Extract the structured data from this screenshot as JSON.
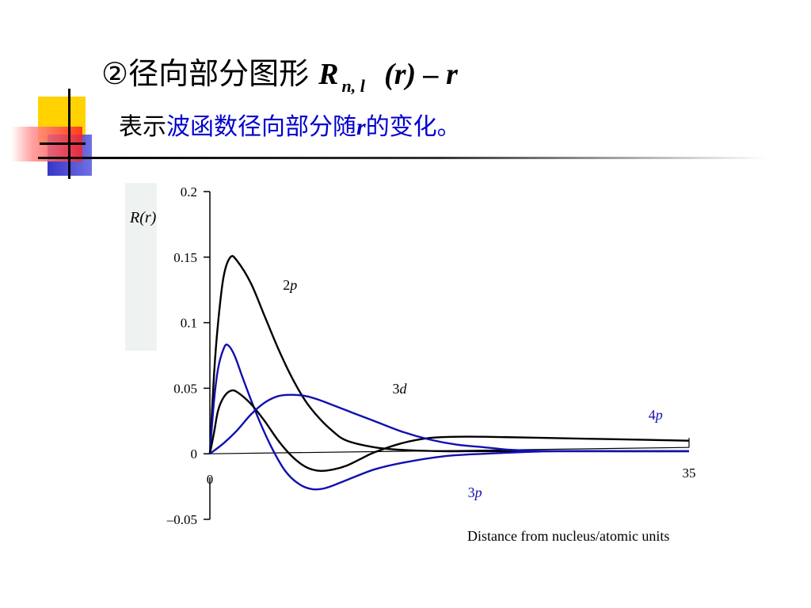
{
  "slide": {
    "title_prefix": "②径向部分图形",
    "title_R": "R",
    "title_sub": "n, l",
    "title_suffix": "(r) – r",
    "subtitle_black": "表示",
    "subtitle_blue1": "波函数径向部分随",
    "subtitle_r": "r",
    "subtitle_blue2": "的变化。"
  },
  "colors": {
    "black": "#000000",
    "blue": "#1010b0",
    "accent_yellow": "#ffd200",
    "accent_red": "#ff3030",
    "accent_blue": "#3030d0"
  },
  "chart_data": {
    "type": "line",
    "ylabel": "R(r)",
    "xlabel": "Distance from nucleus/atomic units",
    "xlim": [
      0,
      35
    ],
    "ylim": [
      -0.05,
      0.2
    ],
    "x_tick_labels": [
      "0",
      "35"
    ],
    "y_tick_labels": [
      "0.2",
      "0.15",
      "0.1",
      "0.05",
      "0",
      "–0.05"
    ],
    "y_tick_values": [
      0.2,
      0.15,
      0.1,
      0.05,
      0,
      -0.05
    ],
    "series": [
      {
        "name": "2p",
        "label_text": "2p",
        "color": "#000000",
        "points": [
          [
            0,
            0
          ],
          [
            0.3,
            0.06
          ],
          [
            0.6,
            0.1
          ],
          [
            1,
            0.135
          ],
          [
            1.5,
            0.15
          ],
          [
            2,
            0.147
          ],
          [
            3,
            0.13
          ],
          [
            4,
            0.105
          ],
          [
            5,
            0.08
          ],
          [
            6,
            0.058
          ],
          [
            7,
            0.04
          ],
          [
            8,
            0.027
          ],
          [
            9,
            0.017
          ],
          [
            10,
            0.01
          ],
          [
            12,
            0.005
          ],
          [
            14,
            0.003
          ],
          [
            17,
            0.002
          ],
          [
            20,
            0.002
          ],
          [
            25,
            0.002
          ],
          [
            30,
            0.002
          ],
          [
            35,
            0.002
          ]
        ]
      },
      {
        "name": "3p",
        "label_text": "3p",
        "color": "#1010b0",
        "points": [
          [
            0,
            0
          ],
          [
            0.3,
            0.04
          ],
          [
            0.6,
            0.065
          ],
          [
            1,
            0.08
          ],
          [
            1.3,
            0.083
          ],
          [
            1.8,
            0.075
          ],
          [
            2.5,
            0.055
          ],
          [
            3.5,
            0.028
          ],
          [
            4.5,
            0.005
          ],
          [
            5.5,
            -0.013
          ],
          [
            6.5,
            -0.023
          ],
          [
            7.5,
            -0.027
          ],
          [
            8.5,
            -0.026
          ],
          [
            10,
            -0.02
          ],
          [
            12,
            -0.012
          ],
          [
            14,
            -0.007
          ],
          [
            17,
            -0.002
          ],
          [
            20,
            0.0
          ],
          [
            25,
            0.002
          ],
          [
            30,
            0.002
          ],
          [
            35,
            0.002
          ]
        ]
      },
      {
        "name": "3d",
        "label_text": "3d",
        "color": "#000000",
        "points": [
          [
            0,
            0
          ],
          [
            0.3,
            0.016
          ],
          [
            0.6,
            0.033
          ],
          [
            1,
            0.043
          ],
          [
            1.5,
            0.048
          ],
          [
            2,
            0.047
          ],
          [
            3,
            0.038
          ],
          [
            4,
            0.025
          ],
          [
            5,
            0.01
          ],
          [
            6,
            -0.002
          ],
          [
            7,
            -0.01
          ],
          [
            8,
            -0.013
          ],
          [
            9,
            -0.012
          ],
          [
            10,
            -0.009
          ],
          [
            11,
            -0.004
          ],
          [
            12,
            0.001
          ],
          [
            14,
            0.008
          ],
          [
            16,
            0.012
          ],
          [
            18,
            0.013
          ],
          [
            20,
            0.013
          ],
          [
            25,
            0.012
          ],
          [
            30,
            0.011
          ],
          [
            35,
            0.01
          ]
        ]
      },
      {
        "name": "4p",
        "label_text": "4p",
        "color": "#1010b0",
        "points": [
          [
            0,
            0
          ],
          [
            1,
            0.008
          ],
          [
            2,
            0.018
          ],
          [
            3,
            0.03
          ],
          [
            4,
            0.039
          ],
          [
            5,
            0.044
          ],
          [
            6,
            0.045
          ],
          [
            7,
            0.044
          ],
          [
            8,
            0.041
          ],
          [
            10,
            0.033
          ],
          [
            12,
            0.025
          ],
          [
            14,
            0.017
          ],
          [
            16,
            0.011
          ],
          [
            18,
            0.007
          ],
          [
            20,
            0.005
          ],
          [
            22,
            0.003
          ],
          [
            25,
            0.002
          ],
          [
            30,
            0.002
          ],
          [
            35,
            0.002
          ]
        ]
      }
    ],
    "grid": false,
    "legend": "inline labels"
  }
}
